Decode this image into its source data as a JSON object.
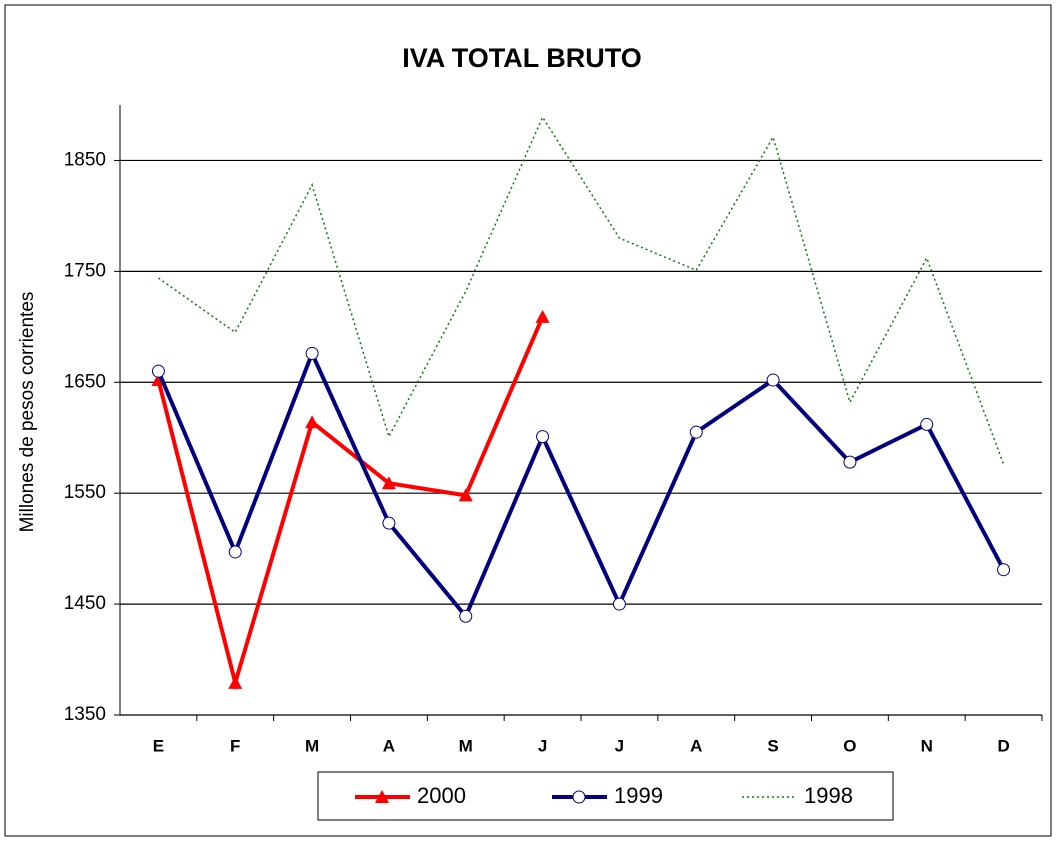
{
  "chart_data": {
    "type": "line",
    "title": "IVA TOTAL BRUTO",
    "y_label": "Millones de pesos corrientes",
    "categories": [
      "E",
      "F",
      "M",
      "A",
      "M",
      "J",
      "J",
      "A",
      "S",
      "O",
      "N",
      "D"
    ],
    "series": [
      {
        "name": "2000",
        "color": "#ff0000",
        "marker": "triangle",
        "dash": "solid",
        "values": [
          1652,
          1379,
          1614,
          1559,
          1548,
          1709,
          null,
          null,
          null,
          null,
          null,
          null
        ]
      },
      {
        "name": "1999",
        "color": "#000080",
        "marker": "circle",
        "dash": "solid",
        "values": [
          1660,
          1497,
          1676,
          1523,
          1439,
          1601,
          1450,
          1605,
          1652,
          1578,
          1612,
          1481
        ]
      },
      {
        "name": "1998",
        "color": "#008000",
        "marker": "none",
        "dash": "dotted",
        "values": [
          1744,
          1695,
          1828,
          1601,
          1732,
          1889,
          1780,
          1751,
          1871,
          1632,
          1762,
          1576
        ]
      }
    ],
    "ylim": [
      1350,
      1900
    ],
    "yticks": [
      1350,
      1450,
      1550,
      1650,
      1750,
      1850
    ],
    "grid": true,
    "legend": "bottom"
  }
}
